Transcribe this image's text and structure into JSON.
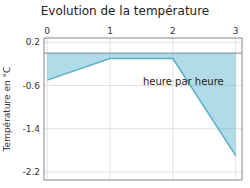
{
  "chart_data": {
    "type": "area",
    "title": "Evolution de la température",
    "y_label": "Température en °C",
    "annotation": "heure par heure",
    "x": [
      0,
      1,
      2,
      3
    ],
    "values": [
      -0.5,
      -0.1,
      -0.1,
      -1.9
    ],
    "color": "#55b0cc",
    "xlim": [
      -0.05,
      3.1
    ],
    "ylim": [
      -2.35,
      0.28
    ],
    "xticks": [
      0,
      1,
      2,
      3
    ],
    "yticks": [
      0.2,
      -0.6,
      -1.4,
      -2.2
    ],
    "grid": true
  }
}
